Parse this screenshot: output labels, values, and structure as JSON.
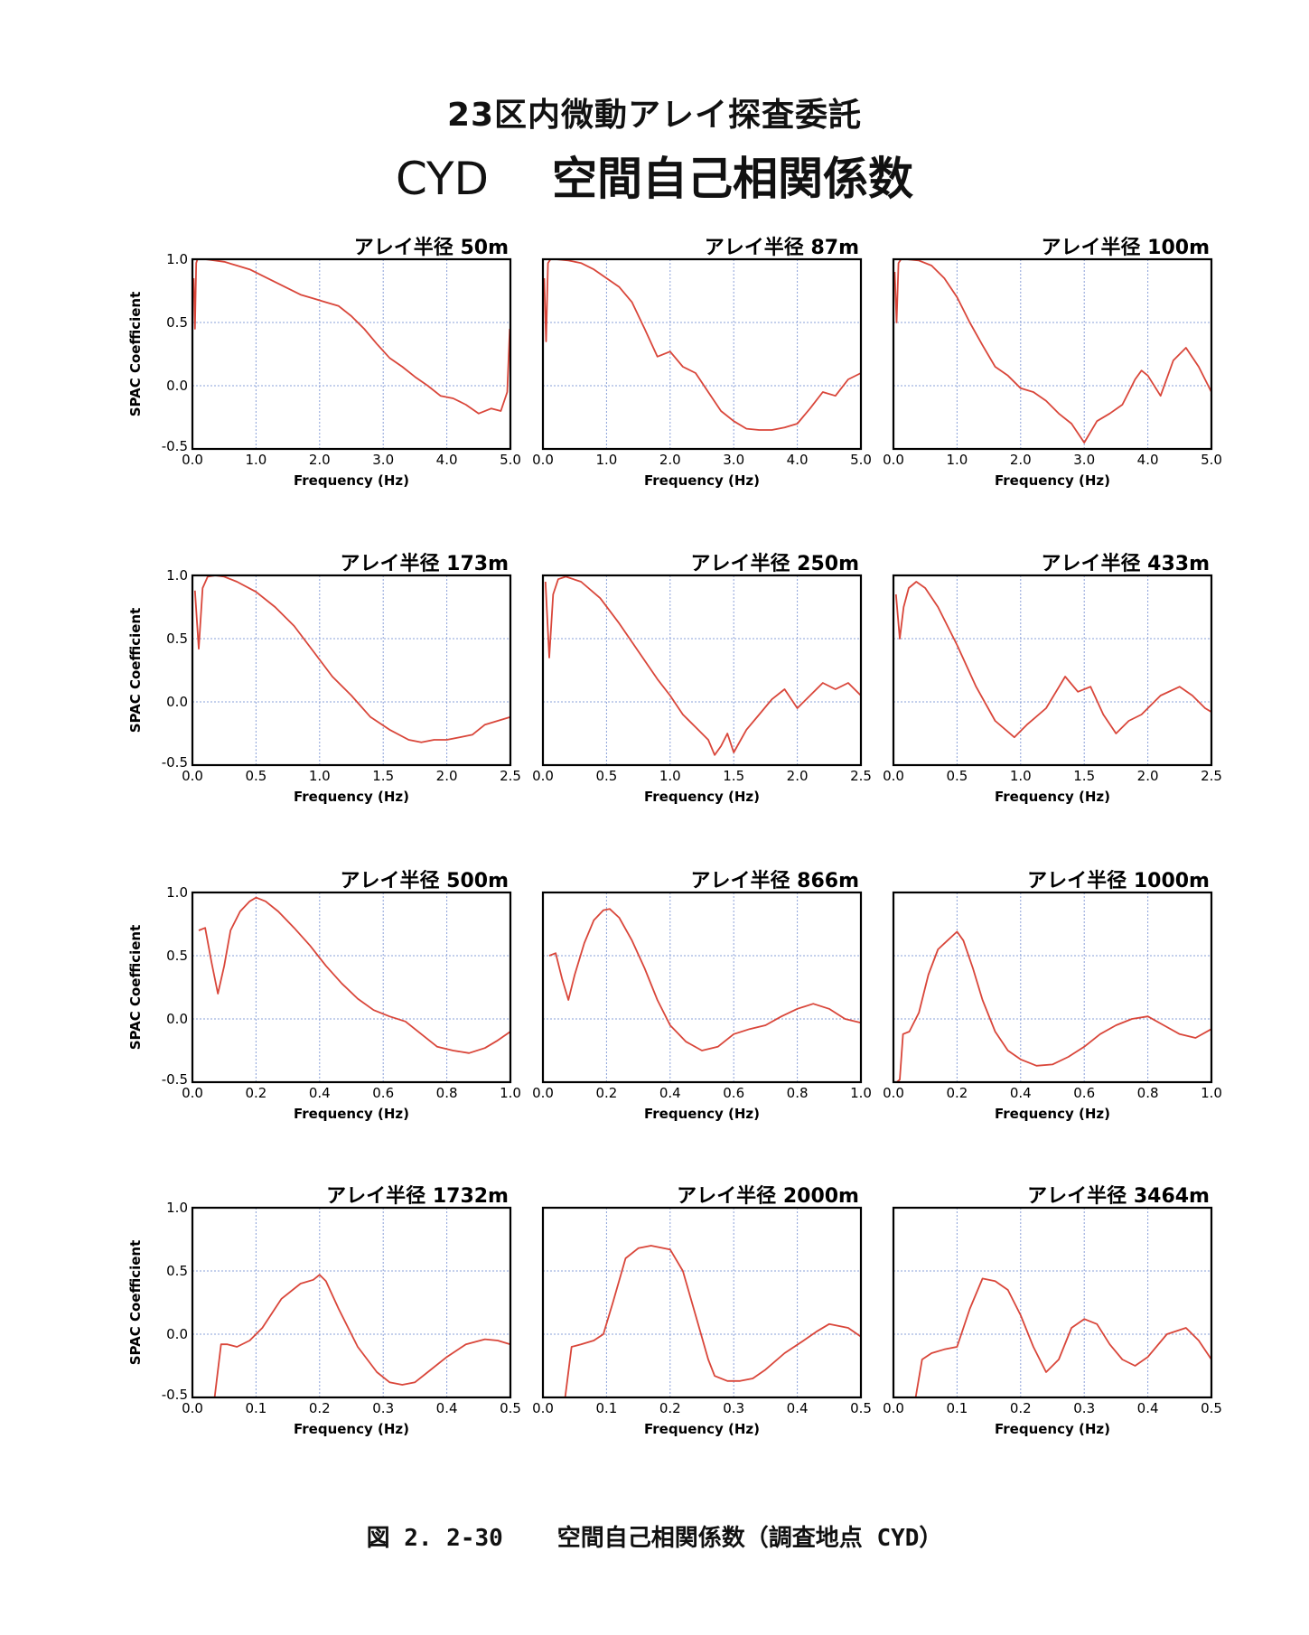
{
  "header": {
    "line1": "23区内微動アレイ探査委託",
    "site_code": "CYD",
    "line2_title": "空間自己相関係数"
  },
  "caption": {
    "figure_number": "図 2. 2-30",
    "text": "空間自己相関係数（調査地点 CYD）"
  },
  "colors": {
    "curve": "#d9463a",
    "frame": "#000000",
    "grid": "#8aa0d8"
  },
  "chart_data": [
    {
      "type": "line",
      "title": "アレイ半径 50m",
      "xlabel": "Frequency (Hz)",
      "ylabel": "SPAC Coefficient",
      "xlim": [
        0,
        5
      ],
      "ylim": [
        -0.5,
        1
      ],
      "xticks": [
        "0.0",
        "1.0",
        "2.0",
        "3.0",
        "4.0",
        "5.0"
      ],
      "yticks": [
        "-0.5",
        "0.0",
        "0.5",
        "1.0"
      ],
      "grid": true,
      "x": [
        0.02,
        0.04,
        0.06,
        0.08,
        0.12,
        0.2,
        0.35,
        0.5,
        0.7,
        0.9,
        1.1,
        1.3,
        1.5,
        1.7,
        1.9,
        2.1,
        2.3,
        2.5,
        2.7,
        2.9,
        3.1,
        3.3,
        3.5,
        3.7,
        3.9,
        4.1,
        4.3,
        4.5,
        4.7,
        4.85,
        4.95,
        4.99
      ],
      "y": [
        0.85,
        0.45,
        0.97,
        1.0,
        1.0,
        1.0,
        0.99,
        0.98,
        0.95,
        0.92,
        0.87,
        0.82,
        0.77,
        0.72,
        0.69,
        0.66,
        0.63,
        0.55,
        0.45,
        0.33,
        0.22,
        0.15,
        0.07,
        0.0,
        -0.08,
        -0.1,
        -0.15,
        -0.22,
        -0.18,
        -0.2,
        -0.05,
        0.45
      ]
    },
    {
      "type": "line",
      "title": "アレイ半径 87m",
      "xlabel": "Frequency (Hz)",
      "ylabel": "",
      "xlim": [
        0,
        5
      ],
      "ylim": [
        -0.5,
        1
      ],
      "xticks": [
        "0.0",
        "1.0",
        "2.0",
        "3.0",
        "4.0",
        "5.0"
      ],
      "yticks": [],
      "grid": true,
      "x": [
        0.02,
        0.05,
        0.08,
        0.12,
        0.2,
        0.4,
        0.6,
        0.8,
        1.0,
        1.2,
        1.4,
        1.6,
        1.8,
        2.0,
        2.2,
        2.4,
        2.6,
        2.8,
        3.0,
        3.2,
        3.4,
        3.6,
        3.8,
        4.0,
        4.2,
        4.4,
        4.6,
        4.8,
        5.0
      ],
      "y": [
        0.85,
        0.35,
        0.97,
        1.0,
        1.0,
        0.99,
        0.97,
        0.92,
        0.85,
        0.78,
        0.66,
        0.45,
        0.23,
        0.27,
        0.15,
        0.1,
        -0.05,
        -0.2,
        -0.28,
        -0.34,
        -0.35,
        -0.35,
        -0.33,
        -0.3,
        -0.18,
        -0.05,
        -0.08,
        0.05,
        0.1
      ]
    },
    {
      "type": "line",
      "title": "アレイ半径 100m",
      "xlabel": "Frequency (Hz)",
      "ylabel": "",
      "xlim": [
        0,
        5
      ],
      "ylim": [
        -0.5,
        1
      ],
      "xticks": [
        "0.0",
        "1.0",
        "2.0",
        "3.0",
        "4.0",
        "5.0"
      ],
      "yticks": [],
      "grid": true,
      "x": [
        0.02,
        0.05,
        0.08,
        0.12,
        0.2,
        0.4,
        0.6,
        0.8,
        1.0,
        1.2,
        1.4,
        1.6,
        1.8,
        2.0,
        2.2,
        2.4,
        2.6,
        2.8,
        3.0,
        3.2,
        3.4,
        3.6,
        3.7,
        3.8,
        3.9,
        4.0,
        4.2,
        4.4,
        4.6,
        4.8,
        5.0
      ],
      "y": [
        0.9,
        0.5,
        0.97,
        1.0,
        1.0,
        0.99,
        0.95,
        0.85,
        0.7,
        0.5,
        0.32,
        0.15,
        0.08,
        -0.02,
        -0.05,
        -0.12,
        -0.22,
        -0.3,
        -0.45,
        -0.28,
        -0.22,
        -0.15,
        -0.05,
        0.05,
        0.12,
        0.08,
        -0.08,
        0.2,
        0.3,
        0.15,
        -0.05
      ]
    },
    {
      "type": "line",
      "title": "アレイ半径 173m",
      "xlabel": "Frequency (Hz)",
      "ylabel": "SPAC Coefficient",
      "xlim": [
        0,
        2.5
      ],
      "ylim": [
        -0.5,
        1
      ],
      "xticks": [
        "0.0",
        "0.5",
        "1.0",
        "1.5",
        "2.0",
        "2.5"
      ],
      "yticks": [
        "-0.5",
        "0.0",
        "0.5",
        "1.0"
      ],
      "grid": true,
      "x": [
        0.02,
        0.05,
        0.08,
        0.12,
        0.18,
        0.25,
        0.35,
        0.5,
        0.65,
        0.8,
        0.95,
        1.1,
        1.25,
        1.4,
        1.55,
        1.7,
        1.8,
        1.9,
        2.0,
        2.1,
        2.2,
        2.3,
        2.4,
        2.5
      ],
      "y": [
        0.88,
        0.42,
        0.9,
        0.99,
        1.0,
        0.99,
        0.95,
        0.87,
        0.75,
        0.6,
        0.4,
        0.2,
        0.05,
        -0.12,
        -0.22,
        -0.3,
        -0.32,
        -0.3,
        -0.3,
        -0.28,
        -0.26,
        -0.18,
        -0.15,
        -0.12
      ]
    },
    {
      "type": "line",
      "title": "アレイ半径 250m",
      "xlabel": "Frequency (Hz)",
      "ylabel": "",
      "xlim": [
        0,
        2.5
      ],
      "ylim": [
        -0.5,
        1
      ],
      "xticks": [
        "0.0",
        "0.5",
        "1.0",
        "1.5",
        "2.0",
        "2.5"
      ],
      "yticks": [],
      "grid": true,
      "x": [
        0.02,
        0.05,
        0.08,
        0.12,
        0.18,
        0.3,
        0.45,
        0.6,
        0.75,
        0.9,
        1.0,
        1.1,
        1.2,
        1.3,
        1.35,
        1.4,
        1.45,
        1.5,
        1.6,
        1.7,
        1.8,
        1.9,
        2.0,
        2.1,
        2.2,
        2.3,
        2.4,
        2.5
      ],
      "y": [
        0.95,
        0.35,
        0.85,
        0.97,
        0.99,
        0.95,
        0.82,
        0.62,
        0.4,
        0.18,
        0.05,
        -0.1,
        -0.2,
        -0.3,
        -0.42,
        -0.35,
        -0.25,
        -0.4,
        -0.22,
        -0.1,
        0.02,
        0.1,
        -0.05,
        0.05,
        0.15,
        0.1,
        0.15,
        0.05
      ]
    },
    {
      "type": "line",
      "title": "アレイ半径 433m",
      "xlabel": "Frequency (Hz)",
      "ylabel": "",
      "xlim": [
        0,
        2.5
      ],
      "ylim": [
        -0.5,
        1
      ],
      "xticks": [
        "0.0",
        "0.5",
        "1.0",
        "1.5",
        "2.0",
        "2.5"
      ],
      "yticks": [],
      "grid": true,
      "x": [
        0.02,
        0.05,
        0.08,
        0.12,
        0.18,
        0.25,
        0.35,
        0.5,
        0.65,
        0.8,
        0.95,
        1.05,
        1.2,
        1.35,
        1.45,
        1.55,
        1.65,
        1.75,
        1.85,
        1.95,
        2.1,
        2.25,
        2.35,
        2.45,
        2.5
      ],
      "y": [
        0.85,
        0.5,
        0.75,
        0.9,
        0.95,
        0.9,
        0.75,
        0.45,
        0.12,
        -0.15,
        -0.28,
        -0.18,
        -0.05,
        0.2,
        0.08,
        0.12,
        -0.1,
        -0.25,
        -0.15,
        -0.1,
        0.05,
        0.12,
        0.05,
        -0.05,
        -0.08
      ]
    },
    {
      "type": "line",
      "title": "アレイ半径 500m",
      "xlabel": "Frequency (Hz)",
      "ylabel": "SPAC Coefficient",
      "xlim": [
        0,
        1
      ],
      "ylim": [
        -0.5,
        1
      ],
      "xticks": [
        "0.0",
        "0.2",
        "0.4",
        "0.6",
        "0.8",
        "1.0"
      ],
      "yticks": [
        "-0.5",
        "0.0",
        "0.5",
        "1.0"
      ],
      "grid": true,
      "x": [
        0.02,
        0.04,
        0.06,
        0.08,
        0.1,
        0.12,
        0.15,
        0.18,
        0.2,
        0.23,
        0.27,
        0.32,
        0.37,
        0.42,
        0.47,
        0.52,
        0.57,
        0.62,
        0.67,
        0.72,
        0.77,
        0.82,
        0.87,
        0.92,
        0.96,
        1.0
      ],
      "y": [
        0.7,
        0.72,
        0.45,
        0.2,
        0.42,
        0.7,
        0.85,
        0.93,
        0.96,
        0.93,
        0.85,
        0.72,
        0.58,
        0.42,
        0.28,
        0.16,
        0.07,
        0.02,
        -0.02,
        -0.12,
        -0.22,
        -0.25,
        -0.27,
        -0.23,
        -0.17,
        -0.1
      ]
    },
    {
      "type": "line",
      "title": "アレイ半径 866m",
      "xlabel": "Frequency (Hz)",
      "ylabel": "",
      "xlim": [
        0,
        1
      ],
      "ylim": [
        -0.5,
        1
      ],
      "xticks": [
        "0.0",
        "0.2",
        "0.4",
        "0.6",
        "0.8",
        "1.0"
      ],
      "yticks": [],
      "grid": true,
      "x": [
        0.02,
        0.04,
        0.06,
        0.08,
        0.1,
        0.13,
        0.16,
        0.19,
        0.21,
        0.24,
        0.28,
        0.32,
        0.36,
        0.4,
        0.45,
        0.5,
        0.55,
        0.6,
        0.65,
        0.7,
        0.75,
        0.8,
        0.85,
        0.9,
        0.95,
        1.0
      ],
      "y": [
        0.5,
        0.52,
        0.32,
        0.15,
        0.35,
        0.6,
        0.78,
        0.86,
        0.87,
        0.8,
        0.62,
        0.4,
        0.15,
        -0.05,
        -0.18,
        -0.25,
        -0.22,
        -0.12,
        -0.08,
        -0.05,
        0.02,
        0.08,
        0.12,
        0.08,
        0.0,
        -0.03
      ]
    },
    {
      "type": "line",
      "title": "アレイ半径 1000m",
      "xlabel": "Frequency (Hz)",
      "ylabel": "",
      "xlim": [
        0,
        1
      ],
      "ylim": [
        -0.5,
        1
      ],
      "xticks": [
        "0.0",
        "0.2",
        "0.4",
        "0.6",
        "0.8",
        "1.0"
      ],
      "yticks": [],
      "grid": true,
      "x": [
        0.01,
        0.02,
        0.03,
        0.05,
        0.08,
        0.11,
        0.14,
        0.17,
        0.2,
        0.22,
        0.25,
        0.28,
        0.32,
        0.36,
        0.4,
        0.45,
        0.5,
        0.55,
        0.6,
        0.65,
        0.7,
        0.75,
        0.8,
        0.85,
        0.9,
        0.95,
        1.0
      ],
      "y": [
        -0.5,
        -0.48,
        -0.12,
        -0.1,
        0.05,
        0.35,
        0.55,
        0.62,
        0.69,
        0.62,
        0.4,
        0.15,
        -0.1,
        -0.25,
        -0.32,
        -0.37,
        -0.36,
        -0.3,
        -0.22,
        -0.12,
        -0.05,
        0.0,
        0.02,
        -0.05,
        -0.12,
        -0.15,
        -0.08
      ]
    },
    {
      "type": "line",
      "title": "アレイ半径 1732m",
      "xlabel": "Frequency (Hz)",
      "ylabel": "SPAC Coefficient",
      "xlim": [
        0,
        0.5
      ],
      "ylim": [
        -0.5,
        1
      ],
      "xticks": [
        "0.0",
        "0.1",
        "0.2",
        "0.3",
        "0.4",
        "0.5"
      ],
      "yticks": [
        "-0.5",
        "0.0",
        "0.5",
        "1.0"
      ],
      "grid": true,
      "x": [
        0.035,
        0.045,
        0.055,
        0.07,
        0.09,
        0.11,
        0.14,
        0.17,
        0.19,
        0.2,
        0.21,
        0.23,
        0.26,
        0.29,
        0.31,
        0.33,
        0.35,
        0.37,
        0.4,
        0.43,
        0.46,
        0.48,
        0.5
      ],
      "y": [
        -0.5,
        -0.08,
        -0.08,
        -0.1,
        -0.05,
        0.05,
        0.28,
        0.4,
        0.43,
        0.47,
        0.42,
        0.2,
        -0.1,
        -0.3,
        -0.38,
        -0.4,
        -0.38,
        -0.3,
        -0.18,
        -0.08,
        -0.04,
        -0.05,
        -0.08
      ]
    },
    {
      "type": "line",
      "title": "アレイ半径 2000m",
      "xlabel": "Frequency (Hz)",
      "ylabel": "",
      "xlim": [
        0,
        0.5
      ],
      "ylim": [
        -0.5,
        1
      ],
      "xticks": [
        "0.0",
        "0.1",
        "0.2",
        "0.3",
        "0.4",
        "0.5"
      ],
      "yticks": [],
      "grid": true,
      "x": [
        0.035,
        0.045,
        0.06,
        0.08,
        0.095,
        0.11,
        0.13,
        0.15,
        0.17,
        0.2,
        0.22,
        0.24,
        0.26,
        0.27,
        0.29,
        0.31,
        0.33,
        0.35,
        0.38,
        0.41,
        0.43,
        0.45,
        0.48,
        0.5
      ],
      "y": [
        -0.5,
        -0.1,
        -0.08,
        -0.05,
        0.0,
        0.25,
        0.6,
        0.68,
        0.7,
        0.67,
        0.5,
        0.15,
        -0.2,
        -0.33,
        -0.37,
        -0.37,
        -0.35,
        -0.28,
        -0.15,
        -0.05,
        0.02,
        0.08,
        0.05,
        -0.02
      ]
    },
    {
      "type": "line",
      "title": "アレイ半径 3464m",
      "xlabel": "Frequency (Hz)",
      "ylabel": "",
      "xlim": [
        0,
        0.5
      ],
      "ylim": [
        -0.5,
        1
      ],
      "xticks": [
        "0.0",
        "0.1",
        "0.2",
        "0.3",
        "0.4",
        "0.5"
      ],
      "yticks": [],
      "grid": true,
      "x": [
        0.035,
        0.045,
        0.06,
        0.08,
        0.1,
        0.12,
        0.14,
        0.16,
        0.18,
        0.2,
        0.22,
        0.24,
        0.26,
        0.28,
        0.3,
        0.32,
        0.34,
        0.36,
        0.38,
        0.4,
        0.43,
        0.46,
        0.48,
        0.5
      ],
      "y": [
        -0.5,
        -0.2,
        -0.15,
        -0.12,
        -0.1,
        0.2,
        0.44,
        0.42,
        0.35,
        0.15,
        -0.1,
        -0.3,
        -0.2,
        0.05,
        0.12,
        0.08,
        -0.08,
        -0.2,
        -0.25,
        -0.18,
        0.0,
        0.05,
        -0.05,
        -0.2
      ]
    }
  ]
}
